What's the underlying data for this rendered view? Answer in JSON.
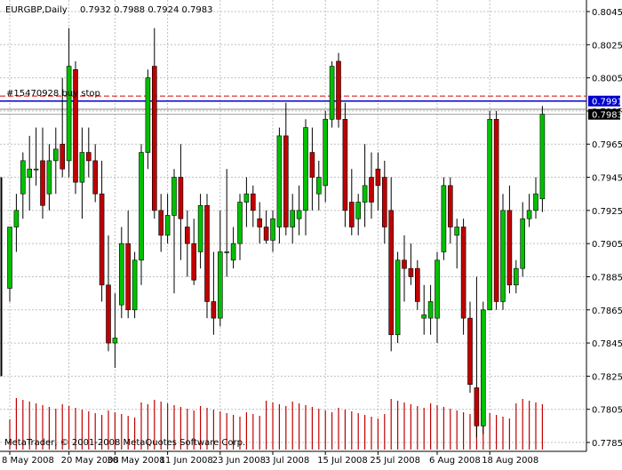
{
  "header": {
    "symbol": "EURGBP,Daily",
    "ohlc": "0.7932 0.7988 0.7924 0.7983"
  },
  "copyright": "MetaTrader, © 2001-2008 MetaQuotes Software Corp.",
  "order_label": "#15470928 buy stop",
  "colors": {
    "background": "#ffffff",
    "grid": "#c0c0c0",
    "up_candle": "#00c000",
    "down_candle": "#c00000",
    "wick": "#000000",
    "volume": "#c00000",
    "order_line": "#0000cc",
    "dash_line": "#e00000",
    "price_tag_blue": "#0000cc",
    "price_tag_black": "#000000"
  },
  "chart_data": {
    "type": "candlestick",
    "title": "EURGBP,Daily",
    "current_ohlc": {
      "open": 0.7932,
      "high": 0.7988,
      "low": 0.7924,
      "close": 0.7983
    },
    "y_ticks": [
      "0.8045",
      "0.8025",
      "0.8005",
      "0.7985",
      "0.7965",
      "0.7945",
      "0.7925",
      "0.7905",
      "0.7885",
      "0.7865",
      "0.7845",
      "0.7825",
      "0.7805",
      "0.7785"
    ],
    "ylim": [
      0.7785,
      0.8045
    ],
    "x_ticks": [
      "8 May 2008",
      "20 May 2008",
      "30 May 2008",
      "11 Jun 2008",
      "23 Jun 2008",
      "3 Jul 2008",
      "15 Jul 2008",
      "25 Jul 2008",
      "6 Aug 2008",
      "18 Aug 2008"
    ],
    "price_tags": [
      {
        "label": "0.7991",
        "value": 0.7991,
        "style": "blue"
      },
      {
        "label": "0.7983",
        "value": 0.7983,
        "style": "black"
      }
    ],
    "order_line_value": 0.7991,
    "dashed_line_value": 0.7994,
    "grey_line_value": 0.7986,
    "candles": [
      {
        "o": 0.7878,
        "h": 0.7915,
        "l": 0.787,
        "c": 0.7915
      },
      {
        "o": 0.7915,
        "h": 0.7935,
        "l": 0.79,
        "c": 0.7925
      },
      {
        "o": 0.7935,
        "h": 0.796,
        "l": 0.792,
        "c": 0.7955
      },
      {
        "o": 0.7945,
        "h": 0.797,
        "l": 0.7925,
        "c": 0.795
      },
      {
        "o": 0.795,
        "h": 0.7975,
        "l": 0.794,
        "c": 0.795
      },
      {
        "o": 0.7955,
        "h": 0.7975,
        "l": 0.792,
        "c": 0.7928
      },
      {
        "o": 0.7935,
        "h": 0.7965,
        "l": 0.7925,
        "c": 0.7955
      },
      {
        "o": 0.7955,
        "h": 0.7975,
        "l": 0.7935,
        "c": 0.7962
      },
      {
        "o": 0.7965,
        "h": 0.8005,
        "l": 0.7945,
        "c": 0.795
      },
      {
        "o": 0.7955,
        "h": 0.8035,
        "l": 0.7945,
        "c": 0.8012
      },
      {
        "o": 0.801,
        "h": 0.8015,
        "l": 0.7935,
        "c": 0.7942
      },
      {
        "o": 0.7942,
        "h": 0.7975,
        "l": 0.792,
        "c": 0.796
      },
      {
        "o": 0.796,
        "h": 0.7975,
        "l": 0.7945,
        "c": 0.7955
      },
      {
        "o": 0.7955,
        "h": 0.7965,
        "l": 0.793,
        "c": 0.7935
      },
      {
        "o": 0.7935,
        "h": 0.7955,
        "l": 0.787,
        "c": 0.788
      },
      {
        "o": 0.788,
        "h": 0.791,
        "l": 0.784,
        "c": 0.7845
      },
      {
        "o": 0.7845,
        "h": 0.7875,
        "l": 0.783,
        "c": 0.7848
      },
      {
        "o": 0.7868,
        "h": 0.7915,
        "l": 0.786,
        "c": 0.7905
      },
      {
        "o": 0.7905,
        "h": 0.7925,
        "l": 0.786,
        "c": 0.7865
      },
      {
        "o": 0.7865,
        "h": 0.79,
        "l": 0.786,
        "c": 0.7895
      },
      {
        "o": 0.7895,
        "h": 0.7965,
        "l": 0.788,
        "c": 0.796
      },
      {
        "o": 0.796,
        "h": 0.801,
        "l": 0.795,
        "c": 0.8005
      },
      {
        "o": 0.8012,
        "h": 0.8035,
        "l": 0.792,
        "c": 0.7925
      },
      {
        "o": 0.7925,
        "h": 0.7935,
        "l": 0.79,
        "c": 0.791
      },
      {
        "o": 0.791,
        "h": 0.7935,
        "l": 0.7905,
        "c": 0.7922
      },
      {
        "o": 0.7922,
        "h": 0.795,
        "l": 0.7875,
        "c": 0.7945
      },
      {
        "o": 0.7945,
        "h": 0.7965,
        "l": 0.7895,
        "c": 0.792
      },
      {
        "o": 0.7915,
        "h": 0.7925,
        "l": 0.7885,
        "c": 0.7905
      },
      {
        "o": 0.7905,
        "h": 0.792,
        "l": 0.788,
        "c": 0.7883
      },
      {
        "o": 0.79,
        "h": 0.7935,
        "l": 0.789,
        "c": 0.7928
      },
      {
        "o": 0.7928,
        "h": 0.7935,
        "l": 0.786,
        "c": 0.787
      },
      {
        "o": 0.787,
        "h": 0.79,
        "l": 0.785,
        "c": 0.786
      },
      {
        "o": 0.786,
        "h": 0.7925,
        "l": 0.7855,
        "c": 0.79
      },
      {
        "o": 0.79,
        "h": 0.795,
        "l": 0.7885,
        "c": 0.79
      },
      {
        "o": 0.7895,
        "h": 0.7915,
        "l": 0.789,
        "c": 0.7905
      },
      {
        "o": 0.7905,
        "h": 0.7935,
        "l": 0.7895,
        "c": 0.793
      },
      {
        "o": 0.793,
        "h": 0.7945,
        "l": 0.7915,
        "c": 0.7935
      },
      {
        "o": 0.7935,
        "h": 0.794,
        "l": 0.7915,
        "c": 0.7925
      },
      {
        "o": 0.792,
        "h": 0.793,
        "l": 0.7905,
        "c": 0.7915
      },
      {
        "o": 0.7915,
        "h": 0.7925,
        "l": 0.7905,
        "c": 0.7907
      },
      {
        "o": 0.7907,
        "h": 0.7925,
        "l": 0.79,
        "c": 0.792
      },
      {
        "o": 0.7915,
        "h": 0.7975,
        "l": 0.7905,
        "c": 0.797
      },
      {
        "o": 0.797,
        "h": 0.799,
        "l": 0.791,
        "c": 0.7915
      },
      {
        "o": 0.7915,
        "h": 0.7935,
        "l": 0.7905,
        "c": 0.7925
      },
      {
        "o": 0.792,
        "h": 0.794,
        "l": 0.791,
        "c": 0.7925
      },
      {
        "o": 0.7925,
        "h": 0.798,
        "l": 0.791,
        "c": 0.7975
      },
      {
        "o": 0.796,
        "h": 0.7975,
        "l": 0.7925,
        "c": 0.7945
      },
      {
        "o": 0.7935,
        "h": 0.7955,
        "l": 0.7925,
        "c": 0.7945
      },
      {
        "o": 0.794,
        "h": 0.7985,
        "l": 0.793,
        "c": 0.798
      },
      {
        "o": 0.798,
        "h": 0.8015,
        "l": 0.7975,
        "c": 0.8012
      },
      {
        "o": 0.8015,
        "h": 0.802,
        "l": 0.7975,
        "c": 0.798
      },
      {
        "o": 0.798,
        "h": 0.799,
        "l": 0.7915,
        "c": 0.7925
      },
      {
        "o": 0.793,
        "h": 0.795,
        "l": 0.791,
        "c": 0.7915
      },
      {
        "o": 0.792,
        "h": 0.7935,
        "l": 0.791,
        "c": 0.793
      },
      {
        "o": 0.793,
        "h": 0.7965,
        "l": 0.7915,
        "c": 0.794
      },
      {
        "o": 0.7945,
        "h": 0.796,
        "l": 0.792,
        "c": 0.793
      },
      {
        "o": 0.795,
        "h": 0.796,
        "l": 0.7925,
        "c": 0.794
      },
      {
        "o": 0.7945,
        "h": 0.7955,
        "l": 0.7905,
        "c": 0.7915
      },
      {
        "o": 0.7925,
        "h": 0.7945,
        "l": 0.784,
        "c": 0.785
      },
      {
        "o": 0.785,
        "h": 0.79,
        "l": 0.7845,
        "c": 0.7895
      },
      {
        "o": 0.7895,
        "h": 0.791,
        "l": 0.787,
        "c": 0.789
      },
      {
        "o": 0.789,
        "h": 0.7905,
        "l": 0.788,
        "c": 0.7885
      },
      {
        "o": 0.789,
        "h": 0.7895,
        "l": 0.7865,
        "c": 0.787
      },
      {
        "o": 0.786,
        "h": 0.788,
        "l": 0.785,
        "c": 0.7862
      },
      {
        "o": 0.786,
        "h": 0.788,
        "l": 0.785,
        "c": 0.787
      },
      {
        "o": 0.786,
        "h": 0.79,
        "l": 0.7845,
        "c": 0.7895
      },
      {
        "o": 0.79,
        "h": 0.7945,
        "l": 0.7895,
        "c": 0.794
      },
      {
        "o": 0.794,
        "h": 0.7945,
        "l": 0.7905,
        "c": 0.7915
      },
      {
        "o": 0.791,
        "h": 0.792,
        "l": 0.789,
        "c": 0.7915
      },
      {
        "o": 0.7915,
        "h": 0.792,
        "l": 0.785,
        "c": 0.786
      },
      {
        "o": 0.786,
        "h": 0.787,
        "l": 0.7815,
        "c": 0.782
      },
      {
        "o": 0.7818,
        "h": 0.7885,
        "l": 0.7788,
        "c": 0.7795
      },
      {
        "o": 0.7795,
        "h": 0.787,
        "l": 0.779,
        "c": 0.7865
      },
      {
        "o": 0.7865,
        "h": 0.7985,
        "l": 0.7865,
        "c": 0.798
      },
      {
        "o": 0.798,
        "h": 0.7985,
        "l": 0.7865,
        "c": 0.787
      },
      {
        "o": 0.787,
        "h": 0.7935,
        "l": 0.7865,
        "c": 0.7925
      },
      {
        "o": 0.7925,
        "h": 0.794,
        "l": 0.7875,
        "c": 0.788
      },
      {
        "o": 0.788,
        "h": 0.7895,
        "l": 0.7875,
        "c": 0.789
      },
      {
        "o": 0.789,
        "h": 0.793,
        "l": 0.7885,
        "c": 0.792
      },
      {
        "o": 0.792,
        "h": 0.7935,
        "l": 0.7915,
        "c": 0.7925
      },
      {
        "o": 0.7925,
        "h": 0.7945,
        "l": 0.792,
        "c": 0.7935
      },
      {
        "o": 0.7932,
        "h": 0.7988,
        "l": 0.7924,
        "c": 0.7983
      }
    ]
  }
}
